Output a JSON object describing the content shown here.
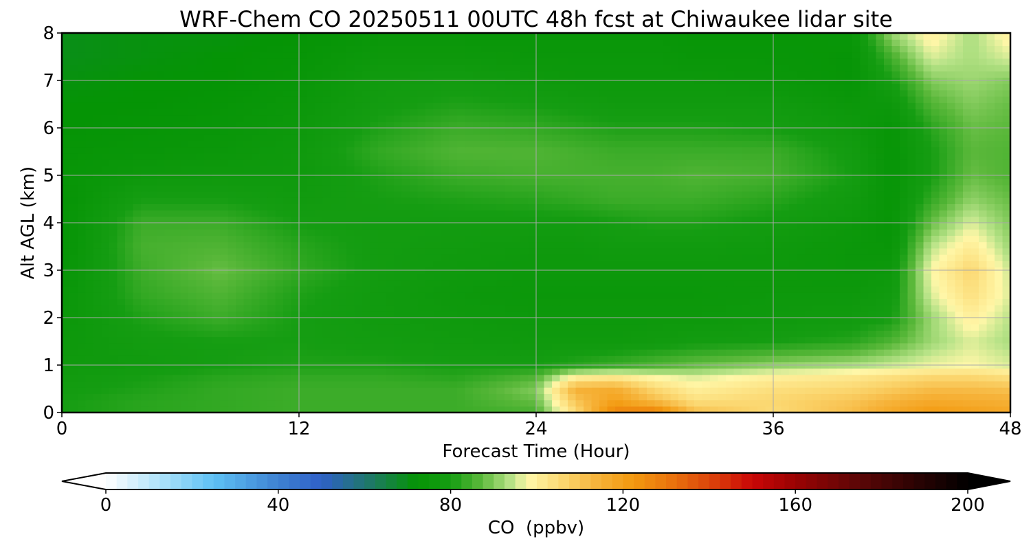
{
  "chart_data": {
    "type": "heatmap",
    "title": "WRF-Chem CO  20250511 00UTC 48h fcst at Chiwaukee lidar site",
    "xlabel": "Forecast Time (Hour)",
    "ylabel": "Alt AGL (km)",
    "xlim": [
      0,
      48
    ],
    "ylim": [
      0,
      8
    ],
    "xticks": [
      0,
      12,
      24,
      36,
      48
    ],
    "yticks": [
      0,
      1,
      2,
      3,
      4,
      5,
      6,
      7,
      8
    ],
    "grid": true,
    "colorbar": {
      "label": "CO  (ppbv)",
      "range": [
        0,
        200
      ],
      "ticks": [
        0,
        40,
        80,
        120,
        160,
        200
      ],
      "extend": "both",
      "stops": [
        {
          "value": 0,
          "color": "#ffffff"
        },
        {
          "value": 15,
          "color": "#9fdcf8"
        },
        {
          "value": 25,
          "color": "#5ec1f5"
        },
        {
          "value": 40,
          "color": "#3e82d2"
        },
        {
          "value": 50,
          "color": "#2f60c8"
        },
        {
          "value": 62,
          "color": "#1d7a60"
        },
        {
          "value": 72,
          "color": "#059405"
        },
        {
          "value": 80,
          "color": "#159d12"
        },
        {
          "value": 87,
          "color": "#5ab83a"
        },
        {
          "value": 94,
          "color": "#b8e388"
        },
        {
          "value": 98,
          "color": "#fff7a8"
        },
        {
          "value": 106,
          "color": "#fbd770"
        },
        {
          "value": 114,
          "color": "#f6b33a"
        },
        {
          "value": 122,
          "color": "#f39a10"
        },
        {
          "value": 132,
          "color": "#e9700d"
        },
        {
          "value": 142,
          "color": "#d93a0a"
        },
        {
          "value": 150,
          "color": "#c90606"
        },
        {
          "value": 160,
          "color": "#9a0303"
        },
        {
          "value": 175,
          "color": "#5a0606"
        },
        {
          "value": 200,
          "color": "#000000"
        }
      ]
    },
    "x": [
      0,
      4,
      8,
      12,
      16,
      20,
      24,
      26,
      28,
      30,
      32,
      36,
      40,
      42,
      44,
      46,
      48
    ],
    "y": [
      0,
      0.25,
      0.5,
      0.75,
      1,
      1.5,
      2,
      2.5,
      3,
      3.5,
      4,
      4.5,
      5,
      5.5,
      6,
      6.5,
      7,
      7.5,
      8
    ],
    "z": [
      [
        80,
        82,
        83,
        84,
        84,
        84,
        85,
        105,
        128,
        130,
        112,
        105,
        112,
        118,
        122,
        120,
        118
      ],
      [
        80,
        82,
        83,
        84,
        84,
        84,
        88,
        110,
        120,
        112,
        104,
        106,
        110,
        114,
        117,
        116,
        115
      ],
      [
        79,
        81,
        83,
        84,
        84,
        84,
        90,
        115,
        116,
        106,
        100,
        104,
        106,
        109,
        112,
        112,
        111
      ],
      [
        78,
        80,
        82,
        83,
        83,
        82,
        86,
        100,
        102,
        98,
        96,
        100,
        102,
        104,
        106,
        106,
        104
      ],
      [
        77,
        78,
        80,
        81,
        81,
        80,
        80,
        82,
        84,
        86,
        88,
        91,
        93,
        95,
        97,
        98,
        96
      ],
      [
        76,
        79,
        80,
        80,
        79,
        78,
        77,
        77,
        77,
        78,
        79,
        80,
        82,
        86,
        92,
        96,
        93
      ],
      [
        75,
        81,
        84,
        80,
        78,
        77,
        76,
        76,
        76,
        76,
        76,
        77,
        78,
        80,
        92,
        100,
        94
      ],
      [
        74,
        83,
        86,
        81,
        78,
        76,
        75,
        75,
        75,
        75,
        75,
        76,
        76,
        78,
        96,
        104,
        96
      ],
      [
        73,
        84,
        88,
        83,
        79,
        77,
        76,
        76,
        76,
        76,
        76,
        76,
        75,
        76,
        98,
        106,
        95
      ],
      [
        72,
        85,
        86,
        82,
        79,
        78,
        77,
        77,
        78,
        78,
        78,
        77,
        75,
        74,
        94,
        101,
        92
      ],
      [
        72,
        84,
        84,
        80,
        79,
        79,
        79,
        79,
        80,
        81,
        81,
        79,
        76,
        73,
        88,
        96,
        90
      ],
      [
        72,
        80,
        80,
        78,
        80,
        81,
        82,
        83,
        84,
        84,
        84,
        82,
        78,
        73,
        83,
        91,
        88
      ],
      [
        73,
        76,
        77,
        77,
        81,
        84,
        85,
        85,
        85,
        85,
        86,
        85,
        80,
        73,
        80,
        88,
        86
      ],
      [
        73,
        74,
        75,
        77,
        83,
        86,
        86,
        85,
        84,
        84,
        84,
        84,
        79,
        73,
        80,
        87,
        86
      ],
      [
        72,
        73,
        74,
        76,
        81,
        84,
        83,
        82,
        81,
        81,
        81,
        80,
        77,
        73,
        82,
        88,
        87
      ],
      [
        72,
        72,
        73,
        75,
        79,
        81,
        80,
        79,
        78,
        78,
        78,
        78,
        75,
        76,
        86,
        90,
        88
      ],
      [
        71,
        72,
        72,
        74,
        78,
        79,
        77,
        76,
        76,
        76,
        76,
        75,
        73,
        80,
        90,
        92,
        90
      ],
      [
        70,
        71,
        72,
        73,
        76,
        76,
        75,
        75,
        75,
        75,
        74,
        74,
        73,
        85,
        96,
        93,
        96
      ],
      [
        70,
        71,
        71,
        72,
        74,
        74,
        74,
        74,
        74,
        74,
        73,
        73,
        74,
        92,
        100,
        93,
        100
      ]
    ]
  }
}
